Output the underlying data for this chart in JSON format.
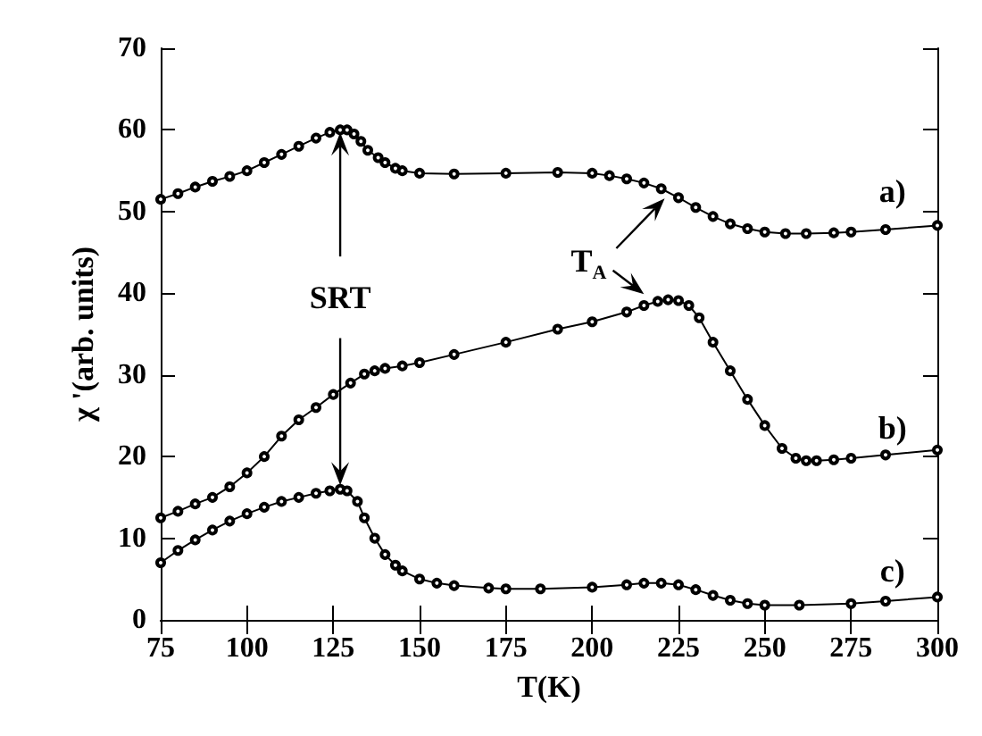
{
  "chart_data": {
    "type": "line",
    "xlabel": "T(K)",
    "ylabel": "χ '(arb. units)",
    "xlim": [
      75,
      300
    ],
    "xticks": [
      75,
      100,
      125,
      150,
      175,
      200,
      225,
      250,
      275,
      300
    ],
    "ylim": [
      0,
      70
    ],
    "yticks": [
      0,
      10,
      20,
      30,
      40,
      50,
      60,
      70
    ],
    "marker": "circle",
    "grid": false,
    "series": [
      {
        "color": "#000000",
        "x": [
          75,
          80,
          85,
          90,
          95,
          100,
          105,
          110,
          115,
          120,
          124,
          127,
          129,
          131,
          133,
          135,
          138,
          140,
          143,
          145,
          150,
          160,
          175,
          190,
          200,
          205,
          210,
          215,
          220,
          225,
          230,
          235,
          240,
          245,
          250,
          256,
          262,
          270,
          275,
          285,
          300
        ],
        "values": [
          51.5,
          52.2,
          53,
          53.7,
          54.3,
          55,
          56,
          57,
          58,
          59,
          59.7,
          60,
          60,
          59.5,
          58.6,
          57.5,
          56.6,
          56,
          55.3,
          55,
          54.7,
          54.6,
          54.7,
          54.8,
          54.7,
          54.4,
          54,
          53.5,
          52.8,
          51.7,
          50.5,
          49.4,
          48.5,
          47.9,
          47.5,
          47.3,
          47.3,
          47.4,
          47.5,
          47.8,
          48.3
        ]
      },
      {
        "color": "#000000",
        "x": [
          75,
          80,
          85,
          90,
          95,
          100,
          105,
          110,
          115,
          120,
          125,
          130,
          134,
          137,
          140,
          145,
          150,
          160,
          175,
          190,
          200,
          210,
          215,
          219,
          222,
          225,
          228,
          231,
          235,
          240,
          245,
          250,
          255,
          259,
          262,
          265,
          270,
          275,
          285,
          300
        ],
        "values": [
          12.5,
          13.3,
          14.2,
          15,
          16.3,
          18,
          20,
          22.5,
          24.5,
          26,
          27.6,
          29,
          30.1,
          30.5,
          30.8,
          31.1,
          31.5,
          32.5,
          34,
          35.6,
          36.5,
          37.7,
          38.5,
          39,
          39.2,
          39.1,
          38.5,
          37,
          34,
          30.5,
          27,
          23.8,
          21,
          19.8,
          19.5,
          19.5,
          19.6,
          19.8,
          20.2,
          20.8
        ]
      },
      {
        "color": "#000000",
        "x": [
          75,
          80,
          85,
          90,
          95,
          100,
          105,
          110,
          115,
          120,
          124,
          127,
          129,
          132,
          134,
          137,
          140,
          143,
          145,
          150,
          155,
          160,
          170,
          175,
          185,
          200,
          210,
          215,
          220,
          225,
          230,
          235,
          240,
          245,
          250,
          260,
          275,
          285,
          300
        ],
        "values": [
          7,
          8.5,
          9.8,
          11,
          12.1,
          13,
          13.8,
          14.5,
          15,
          15.5,
          15.8,
          16,
          15.8,
          14.5,
          12.5,
          10,
          8,
          6.7,
          6,
          5,
          4.5,
          4.2,
          3.9,
          3.8,
          3.8,
          4,
          4.3,
          4.5,
          4.5,
          4.3,
          3.7,
          3,
          2.4,
          2,
          1.8,
          1.8,
          2,
          2.3,
          2.8
        ]
      }
    ],
    "annotations": [
      "a)",
      "b)",
      "c)",
      {
        "text": "SRT",
        "x": 127,
        "y": 60
      },
      {
        "text": "T$_{A}$",
        "x": 221,
        "y": 51.6
      }
    ]
  }
}
